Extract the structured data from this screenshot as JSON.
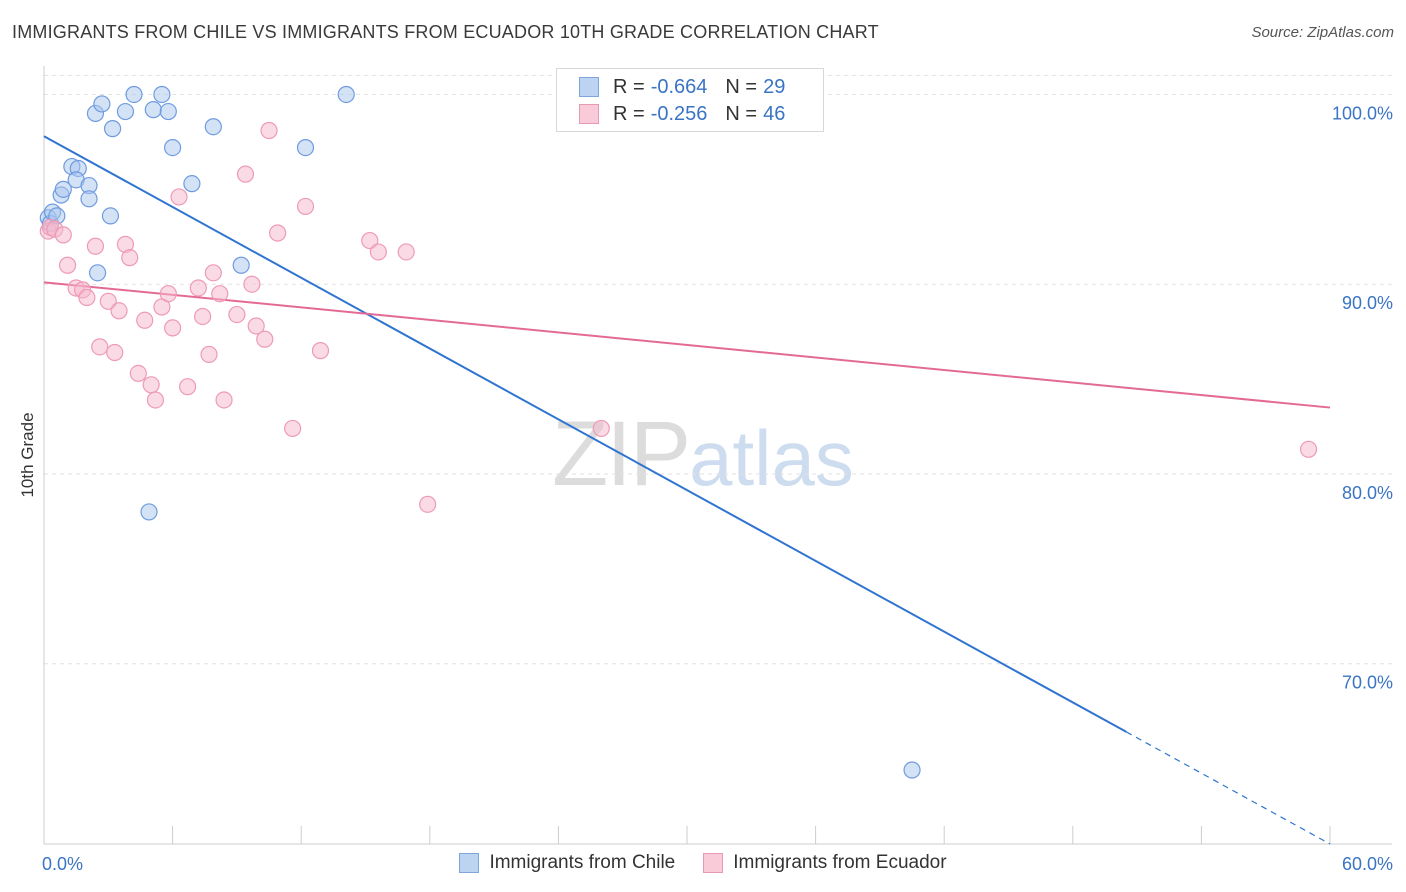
{
  "title": "IMMIGRANTS FROM CHILE VS IMMIGRANTS FROM ECUADOR 10TH GRADE CORRELATION CHART",
  "source": "Source: ZipAtlas.com",
  "watermark": {
    "zip": "ZIP",
    "atlas": "atlas"
  },
  "legend": {
    "chile": {
      "r_label": "R =",
      "r_value": "-0.664",
      "n_label": "N =",
      "n_value": "29",
      "name": "Immigrants from Chile"
    },
    "ecuador": {
      "r_label": "R =",
      "r_value": "-0.256",
      "n_label": "N =",
      "n_value": "46",
      "name": "Immigrants from Ecuador"
    }
  },
  "chart_data": {
    "type": "scatter",
    "title": "IMMIGRANTS FROM CHILE VS IMMIGRANTS FROM ECUADOR 10TH GRADE CORRELATION CHART",
    "xlabel": "",
    "ylabel": "10th Grade",
    "xlim": [
      0,
      60
    ],
    "ylim": [
      60.5,
      101.5
    ],
    "x_tick_labels": [
      "0.0%",
      "60.0%"
    ],
    "y_ticks": [
      {
        "value": 100,
        "label": "100.0%"
      },
      {
        "value": 90,
        "label": "90.0%"
      },
      {
        "value": 80,
        "label": "80.0%"
      },
      {
        "value": 70,
        "label": "70.0%"
      }
    ],
    "colors": {
      "chile": "#a9c6ee",
      "chile_line": "#2f74d0",
      "ecuador": "#f6b8cb",
      "ecuador_line": "#e46a96",
      "grid": "#e2e2e2",
      "tick_text": "#3a74c4"
    },
    "series": [
      {
        "name": "Immigrants from Chile",
        "trend": {
          "x1": 0,
          "y1": 97.8,
          "x2": 60,
          "y2": 60.5,
          "solid_until_x": 50.5
        },
        "points": [
          [
            0.2,
            93.5
          ],
          [
            0.3,
            93.2
          ],
          [
            0.4,
            93.8
          ],
          [
            0.6,
            93.6
          ],
          [
            0.8,
            94.7
          ],
          [
            0.9,
            95.0
          ],
          [
            1.3,
            96.2
          ],
          [
            1.6,
            96.1
          ],
          [
            1.5,
            95.5
          ],
          [
            2.1,
            95.2
          ],
          [
            2.1,
            94.5
          ],
          [
            2.4,
            99.0
          ],
          [
            2.7,
            99.5
          ],
          [
            3.1,
            93.6
          ],
          [
            3.2,
            98.2
          ],
          [
            3.8,
            99.1
          ],
          [
            4.2,
            100.0
          ],
          [
            5.1,
            99.2
          ],
          [
            5.5,
            100.0
          ],
          [
            5.8,
            99.1
          ],
          [
            6.0,
            97.2
          ],
          [
            6.9,
            95.3
          ],
          [
            7.9,
            98.3
          ],
          [
            9.2,
            91.0
          ],
          [
            12.2,
            97.2
          ],
          [
            14.1,
            100.0
          ],
          [
            2.5,
            90.6
          ],
          [
            4.9,
            78.0
          ],
          [
            40.5,
            64.4
          ]
        ]
      },
      {
        "name": "Immigrants from Ecuador",
        "trend": {
          "x1": 0,
          "y1": 90.1,
          "x2": 60,
          "y2": 83.5,
          "solid_until_x": 60
        },
        "points": [
          [
            0.2,
            92.8
          ],
          [
            0.3,
            93.0
          ],
          [
            0.5,
            92.9
          ],
          [
            0.9,
            92.6
          ],
          [
            1.1,
            91.0
          ],
          [
            1.5,
            89.8
          ],
          [
            1.8,
            89.7
          ],
          [
            2.0,
            89.3
          ],
          [
            2.4,
            92.0
          ],
          [
            2.6,
            86.7
          ],
          [
            3.0,
            89.1
          ],
          [
            3.3,
            86.4
          ],
          [
            3.5,
            88.6
          ],
          [
            3.8,
            92.1
          ],
          [
            4.0,
            91.4
          ],
          [
            4.4,
            85.3
          ],
          [
            4.7,
            88.1
          ],
          [
            5.0,
            84.7
          ],
          [
            5.2,
            83.9
          ],
          [
            5.5,
            88.8
          ],
          [
            5.8,
            89.5
          ],
          [
            6.0,
            87.7
          ],
          [
            6.3,
            94.6
          ],
          [
            6.7,
            84.6
          ],
          [
            7.2,
            89.8
          ],
          [
            7.4,
            88.3
          ],
          [
            7.7,
            86.3
          ],
          [
            7.9,
            90.6
          ],
          [
            8.2,
            89.5
          ],
          [
            8.4,
            83.9
          ],
          [
            9.0,
            88.4
          ],
          [
            9.4,
            95.8
          ],
          [
            9.7,
            90.0
          ],
          [
            9.9,
            87.8
          ],
          [
            10.3,
            87.1
          ],
          [
            10.5,
            98.1
          ],
          [
            10.9,
            92.7
          ],
          [
            11.6,
            82.4
          ],
          [
            12.2,
            94.1
          ],
          [
            12.9,
            86.5
          ],
          [
            15.2,
            92.3
          ],
          [
            15.6,
            91.7
          ],
          [
            16.9,
            91.7
          ],
          [
            17.9,
            78.4
          ],
          [
            26.0,
            82.4
          ],
          [
            59.0,
            81.3
          ]
        ]
      }
    ]
  }
}
